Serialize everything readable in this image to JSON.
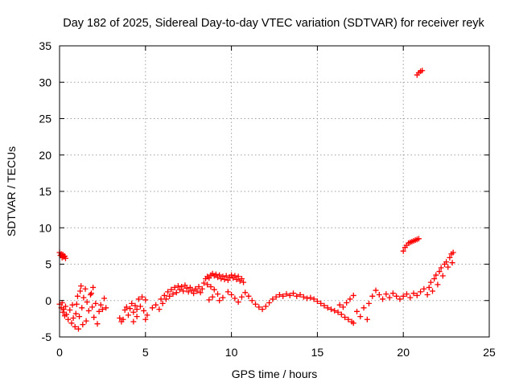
{
  "chart_data": {
    "type": "scatter",
    "title": "Day 182 of 2025, Sidereal Day-to-day VTEC variation (SDTVAR) for receiver reyk",
    "xlabel": "GPS time / hours",
    "ylabel": "SDTVAR / TECUs",
    "xlim": [
      0,
      25
    ],
    "ylim": [
      -5,
      35
    ],
    "xticks": [
      0,
      5,
      10,
      15,
      20,
      25
    ],
    "yticks": [
      -5,
      0,
      5,
      10,
      15,
      20,
      25,
      30,
      35
    ],
    "grid": true,
    "marker": "+",
    "color": "#ff0000",
    "series": [
      {
        "name": "SDTVAR",
        "points": [
          [
            0.0,
            6.6
          ],
          [
            0.05,
            6.2
          ],
          [
            0.1,
            6.4
          ],
          [
            0.15,
            5.9
          ],
          [
            0.2,
            6.3
          ],
          [
            0.25,
            6.0
          ],
          [
            0.3,
            6.1
          ],
          [
            0.35,
            5.8
          ],
          [
            0.0,
            -0.5
          ],
          [
            0.1,
            -1.0
          ],
          [
            0.15,
            -0.3
          ],
          [
            0.2,
            -1.6
          ],
          [
            0.25,
            -1.2
          ],
          [
            0.3,
            -2.1
          ],
          [
            0.35,
            -0.8
          ],
          [
            0.4,
            -1.9
          ],
          [
            0.5,
            -2.6
          ],
          [
            0.6,
            -1.3
          ],
          [
            0.7,
            -3.1
          ],
          [
            0.75,
            -0.6
          ],
          [
            0.8,
            -2.4
          ],
          [
            0.9,
            -3.6
          ],
          [
            0.95,
            -1.8
          ],
          [
            1.0,
            -0.5
          ],
          [
            1.05,
            0.6
          ],
          [
            1.1,
            -3.9
          ],
          [
            1.15,
            -2.2
          ],
          [
            1.2,
            1.3
          ],
          [
            1.25,
            2.0
          ],
          [
            1.3,
            -1.0
          ],
          [
            1.35,
            -3.3
          ],
          [
            1.4,
            0.4
          ],
          [
            1.5,
            1.6
          ],
          [
            1.55,
            -2.8
          ],
          [
            1.6,
            -0.2
          ],
          [
            1.7,
            -1.4
          ],
          [
            1.8,
            0.8
          ],
          [
            1.85,
            1.0
          ],
          [
            1.9,
            -0.9
          ],
          [
            1.95,
            1.8
          ],
          [
            2.0,
            -2.3
          ],
          [
            2.1,
            -0.4
          ],
          [
            2.2,
            -3.2
          ],
          [
            2.3,
            -1.5
          ],
          [
            2.4,
            -0.6
          ],
          [
            2.5,
            -1.2
          ],
          [
            2.6,
            0.3
          ],
          [
            2.7,
            -1.0
          ],
          [
            3.5,
            -2.4
          ],
          [
            3.6,
            -2.9
          ],
          [
            3.7,
            -2.6
          ],
          [
            3.8,
            -1.3
          ],
          [
            3.9,
            -0.9
          ],
          [
            4.0,
            -2.0
          ],
          [
            4.1,
            -1.1
          ],
          [
            4.2,
            -0.4
          ],
          [
            4.3,
            -1.6
          ],
          [
            4.4,
            -0.7
          ],
          [
            4.5,
            -1.2
          ],
          [
            4.6,
            0.2
          ],
          [
            4.7,
            -0.8
          ],
          [
            4.8,
            0.5
          ],
          [
            4.9,
            -1.4
          ],
          [
            5.0,
            -2.6
          ],
          [
            5.1,
            -2.0
          ],
          [
            5.0,
            0.1
          ],
          [
            4.5,
            -2.2
          ],
          [
            4.3,
            -2.9
          ],
          [
            5.4,
            -1.0
          ],
          [
            5.6,
            -0.6
          ],
          [
            5.8,
            -1.2
          ],
          [
            5.9,
            0.2
          ],
          [
            6.0,
            -0.4
          ],
          [
            6.1,
            0.7
          ],
          [
            6.2,
            0.2
          ],
          [
            6.3,
            1.2
          ],
          [
            6.4,
            0.6
          ],
          [
            6.5,
            1.5
          ],
          [
            6.6,
            0.9
          ],
          [
            6.7,
            1.8
          ],
          [
            6.8,
            1.1
          ],
          [
            6.9,
            2.0
          ],
          [
            7.0,
            1.5
          ],
          [
            7.1,
            1.9
          ],
          [
            7.2,
            1.3
          ],
          [
            7.3,
            2.1
          ],
          [
            7.4,
            1.7
          ],
          [
            7.5,
            1.2
          ],
          [
            7.6,
            1.8
          ],
          [
            7.7,
            1.4
          ],
          [
            7.8,
            1.0
          ],
          [
            7.9,
            1.6
          ],
          [
            8.0,
            1.3
          ],
          [
            8.1,
            1.9
          ],
          [
            8.2,
            1.1
          ],
          [
            8.3,
            1.6
          ],
          [
            8.4,
            2.4
          ],
          [
            8.5,
            3.0
          ],
          [
            8.6,
            3.3
          ],
          [
            8.7,
            3.1
          ],
          [
            8.8,
            3.5
          ],
          [
            8.9,
            3.7
          ],
          [
            9.0,
            3.4
          ],
          [
            9.1,
            3.6
          ],
          [
            9.2,
            3.2
          ],
          [
            9.3,
            3.5
          ],
          [
            9.4,
            3.0
          ],
          [
            9.5,
            3.3
          ],
          [
            9.6,
            2.9
          ],
          [
            9.7,
            3.4
          ],
          [
            9.8,
            2.8
          ],
          [
            9.9,
            3.2
          ],
          [
            10.0,
            3.5
          ],
          [
            10.1,
            3.1
          ],
          [
            10.2,
            3.4
          ],
          [
            10.3,
            2.9
          ],
          [
            10.4,
            3.3
          ],
          [
            10.5,
            2.7
          ],
          [
            10.6,
            3.0
          ],
          [
            10.7,
            2.5
          ],
          [
            8.6,
            2.2
          ],
          [
            8.8,
            1.9
          ],
          [
            9.0,
            1.5
          ],
          [
            9.2,
            0.9
          ],
          [
            8.9,
            0.5
          ],
          [
            8.7,
            0.1
          ],
          [
            9.3,
            0.0
          ],
          [
            9.5,
            0.4
          ],
          [
            9.8,
            1.2
          ],
          [
            10.0,
            0.8
          ],
          [
            10.2,
            0.3
          ],
          [
            10.4,
            -0.2
          ],
          [
            10.6,
            0.5
          ],
          [
            10.8,
            1.1
          ],
          [
            11.0,
            0.6
          ],
          [
            11.2,
            0.0
          ],
          [
            11.4,
            -0.5
          ],
          [
            11.6,
            -0.9
          ],
          [
            11.8,
            -1.2
          ],
          [
            12.0,
            -0.8
          ],
          [
            12.2,
            -0.3
          ],
          [
            12.4,
            0.2
          ],
          [
            12.6,
            0.5
          ],
          [
            12.8,
            0.8
          ],
          [
            13.0,
            0.6
          ],
          [
            13.2,
            0.9
          ],
          [
            13.4,
            0.7
          ],
          [
            13.6,
            1.0
          ],
          [
            13.8,
            0.6
          ],
          [
            14.0,
            0.8
          ],
          [
            14.2,
            0.5
          ],
          [
            14.4,
            0.3
          ],
          [
            14.6,
            0.4
          ],
          [
            14.8,
            0.2
          ],
          [
            15.0,
            -0.1
          ],
          [
            15.2,
            -0.4
          ],
          [
            15.4,
            -0.7
          ],
          [
            15.6,
            -1.0
          ],
          [
            15.8,
            -1.2
          ],
          [
            16.0,
            -1.4
          ],
          [
            16.2,
            -1.6
          ],
          [
            16.4,
            -1.9
          ],
          [
            16.6,
            -2.3
          ],
          [
            16.8,
            -2.6
          ],
          [
            17.0,
            -2.9
          ],
          [
            17.1,
            -3.1
          ],
          [
            16.3,
            -0.6
          ],
          [
            16.5,
            -0.9
          ],
          [
            16.7,
            -0.3
          ],
          [
            16.9,
            0.2
          ],
          [
            17.1,
            0.7
          ],
          [
            17.3,
            -1.5
          ],
          [
            17.5,
            -2.2
          ],
          [
            17.7,
            -1.0
          ],
          [
            17.9,
            -2.6
          ],
          [
            18.0,
            -0.4
          ],
          [
            18.2,
            0.6
          ],
          [
            18.4,
            1.4
          ],
          [
            18.6,
            0.8
          ],
          [
            18.8,
            0.2
          ],
          [
            19.0,
            0.9
          ],
          [
            19.2,
            0.4
          ],
          [
            19.4,
            1.0
          ],
          [
            19.6,
            0.6
          ],
          [
            19.8,
            0.2
          ],
          [
            20.0,
            0.6
          ],
          [
            20.2,
            0.9
          ],
          [
            20.4,
            0.4
          ],
          [
            20.6,
            1.0
          ],
          [
            20.8,
            0.7
          ],
          [
            21.0,
            1.2
          ],
          [
            20.0,
            6.8
          ],
          [
            20.1,
            7.3
          ],
          [
            20.2,
            7.6
          ],
          [
            20.3,
            7.9
          ],
          [
            20.4,
            8.0
          ],
          [
            20.5,
            8.1
          ],
          [
            20.6,
            8.2
          ],
          [
            20.7,
            8.3
          ],
          [
            20.8,
            8.4
          ],
          [
            20.9,
            8.5
          ],
          [
            20.8,
            31.0
          ],
          [
            20.9,
            31.3
          ],
          [
            21.0,
            31.5
          ],
          [
            21.1,
            31.6
          ],
          [
            21.2,
            1.6
          ],
          [
            21.4,
            0.8
          ],
          [
            21.5,
            1.8
          ],
          [
            21.6,
            2.5
          ],
          [
            21.7,
            1.3
          ],
          [
            21.8,
            3.0
          ],
          [
            21.9,
            3.5
          ],
          [
            22.0,
            2.2
          ],
          [
            22.1,
            4.0
          ],
          [
            22.2,
            4.5
          ],
          [
            22.3,
            3.4
          ],
          [
            22.4,
            5.0
          ],
          [
            22.5,
            5.3
          ],
          [
            22.6,
            4.6
          ],
          [
            22.7,
            5.9
          ],
          [
            22.8,
            6.4
          ],
          [
            22.85,
            5.2
          ],
          [
            22.9,
            6.6
          ]
        ]
      }
    ]
  }
}
